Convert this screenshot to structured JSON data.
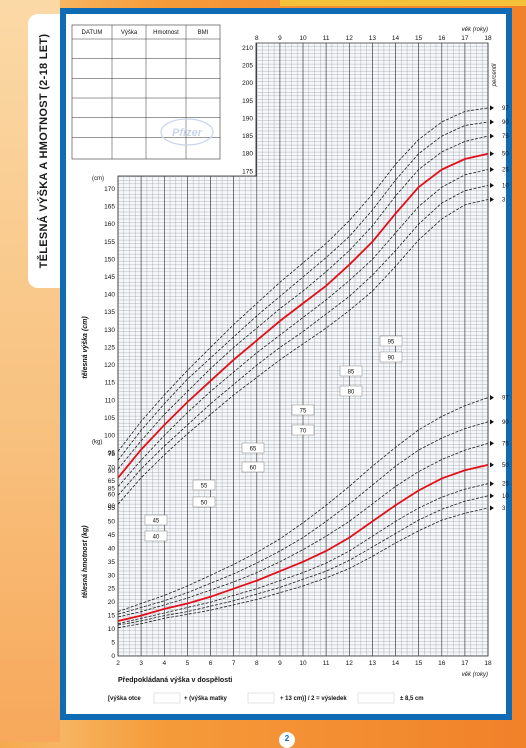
{
  "page": {
    "side_title": "TĚLESNÁ VÝŠKA A HMOTNOST (2-18 LET)",
    "page_number": "2",
    "logo_text": "Pfizer"
  },
  "table": {
    "headers": [
      "DATUM",
      "Výška",
      "Hmotnost",
      "BMI"
    ],
    "rows": 6
  },
  "formula": {
    "title": "Předpokládaná výška v dospělosti",
    "father": "[výška otce",
    "plus_mother": "+ (výška matky",
    "plus13": "+ 13 cm)] / 2 = výsledek",
    "pm": "± 8,5 cm"
  },
  "chart_data": {
    "type": "line",
    "x_label_top": "věk (roky)",
    "x_label_bottom": "věk (roky)",
    "x": [
      2,
      3,
      4,
      5,
      6,
      7,
      8,
      9,
      10,
      11,
      12,
      13,
      14,
      15,
      16,
      17,
      18
    ],
    "xlim": [
      2,
      18
    ],
    "percentile_label": "percentil",
    "highlight_percentile": "50",
    "height": {
      "ylabel": "tělesná výška (cm)",
      "unit": "(cm)",
      "ylim": [
        80,
        210
      ],
      "ticks_left": [
        80,
        85,
        90,
        95,
        100,
        105,
        110,
        115,
        120,
        125,
        130,
        135,
        140,
        145,
        150,
        155,
        160,
        165,
        170
      ],
      "ticks_right": [
        175,
        180,
        185,
        190,
        195,
        200,
        205,
        210
      ],
      "series": [
        {
          "name": "97",
          "values": [
            95.5,
            104,
            111.5,
            118.5,
            125,
            131.5,
            137.5,
            143.5,
            149,
            154.5,
            161,
            168.5,
            177,
            184,
            189,
            192,
            193
          ]
        },
        {
          "name": "90",
          "values": [
            93,
            101.5,
            109,
            116,
            122,
            128,
            134,
            139.5,
            145,
            150.5,
            156.5,
            164,
            172.5,
            180,
            185,
            188,
            189
          ]
        },
        {
          "name": "75",
          "values": [
            90.5,
            98.5,
            106,
            112.5,
            119,
            125,
            130.5,
            136,
            141,
            146.5,
            152.5,
            159.5,
            168,
            175.5,
            180.5,
            183.5,
            185
          ]
        },
        {
          "name": "50",
          "values": [
            88,
            96,
            103,
            109.5,
            115.5,
            121.5,
            127,
            132.5,
            137.5,
            142.5,
            148.5,
            155,
            163,
            170.5,
            175.5,
            178.5,
            180
          ]
        },
        {
          "name": "25",
          "values": [
            85.5,
            93,
            100,
            106.5,
            112.5,
            118,
            123.5,
            128.5,
            133.5,
            138.5,
            144,
            150,
            157.5,
            165,
            170.5,
            174,
            175.5
          ]
        },
        {
          "name": "10",
          "values": [
            83,
            90.5,
            97,
            103,
            109,
            114.5,
            120,
            125,
            129.5,
            134.5,
            139.5,
            145.5,
            152.5,
            160,
            166,
            169.5,
            171
          ]
        },
        {
          "name": "3",
          "values": [
            80.5,
            88,
            94.5,
            100.5,
            106,
            111.5,
            116.5,
            121.5,
            126,
            130.5,
            135.5,
            141,
            148,
            155.5,
            161.5,
            165.5,
            167
          ]
        }
      ]
    },
    "weight": {
      "ylabel": "tělesná hmotnost (kg)",
      "unit": "(kg)",
      "ylim": [
        0,
        100
      ],
      "ticks": [
        0,
        5,
        10,
        15,
        20,
        25,
        30,
        35,
        40,
        45,
        50,
        55,
        60,
        65,
        70,
        75,
        80,
        85,
        90,
        95,
        100,
        105,
        110,
        115,
        120
      ],
      "series": [
        {
          "name": "97",
          "values": [
            16.5,
            19.5,
            22.5,
            26,
            30,
            34,
            38.5,
            43.5,
            49.5,
            56,
            63,
            70.5,
            77.5,
            84,
            89,
            93,
            96
          ]
        },
        {
          "name": "90",
          "values": [
            15.5,
            18,
            20.5,
            23.5,
            27,
            30.5,
            34.5,
            39,
            44,
            50,
            56.5,
            63.5,
            70.5,
            76.5,
            81,
            84.5,
            87
          ]
        },
        {
          "name": "75",
          "values": [
            14.5,
            16.5,
            19,
            21.5,
            24.5,
            27.5,
            31,
            35,
            39.5,
            44.5,
            50,
            56.5,
            63,
            68.5,
            73,
            76.5,
            79
          ]
        },
        {
          "name": "50",
          "values": [
            13,
            15,
            17.5,
            19.5,
            22,
            25,
            28,
            31.5,
            35,
            39,
            44,
            50,
            56,
            61.5,
            66,
            69,
            71
          ]
        },
        {
          "name": "25",
          "values": [
            12,
            14,
            16,
            18,
            20,
            22.5,
            25,
            28,
            31,
            34.5,
            39,
            44.5,
            50,
            55,
            59,
            62,
            64
          ]
        },
        {
          "name": "10",
          "values": [
            11.5,
            13,
            15,
            16.5,
            18.5,
            20.5,
            23,
            25.5,
            28.5,
            31.5,
            35.5,
            40.5,
            45.5,
            50.5,
            54.5,
            57.5,
            59.5
          ]
        },
        {
          "name": "3",
          "values": [
            10.5,
            12,
            14,
            15.5,
            17,
            19,
            21,
            23.5,
            26,
            29,
            32.5,
            37,
            42,
            46.5,
            50.5,
            53,
            55
          ]
        }
      ]
    },
    "parent_boxes": [
      {
        "label": "95",
        "h": 0
      },
      {
        "label": "90",
        "h": 0
      },
      {
        "label": "85",
        "h": 0
      },
      {
        "label": "80",
        "h": 0
      },
      {
        "label": "75",
        "h": 0
      },
      {
        "label": "70",
        "h": 0
      },
      {
        "label": "65",
        "h": 0
      },
      {
        "label": "60",
        "h": 0
      },
      {
        "label": "55",
        "h": 0
      },
      {
        "label": "50",
        "h": 0
      },
      {
        "label": "45",
        "h": 0
      },
      {
        "label": "40",
        "h": 0
      }
    ]
  }
}
